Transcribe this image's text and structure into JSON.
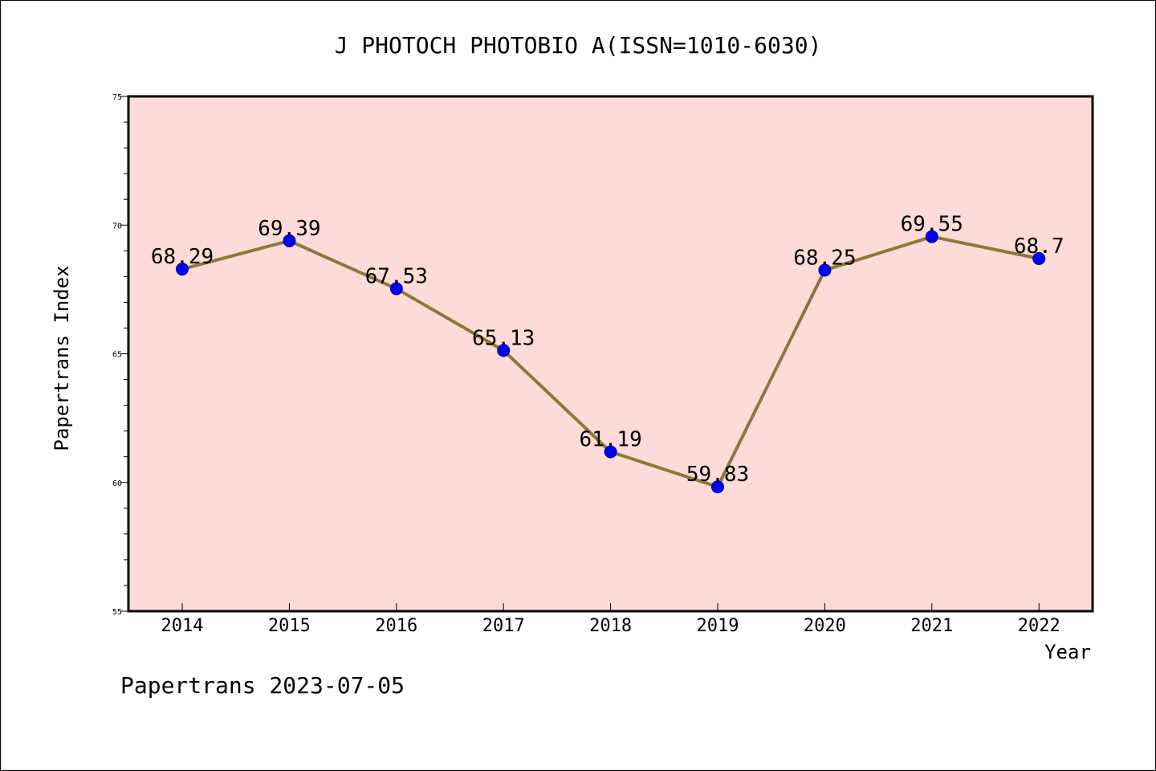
{
  "chart_data": {
    "type": "line",
    "title": "J PHOTOCH PHOTOBIO A(ISSN=1010-6030)",
    "xlabel": "Year",
    "ylabel": "Papertrans Index",
    "categories": [
      "2014",
      "2015",
      "2016",
      "2017",
      "2018",
      "2019",
      "2020",
      "2021",
      "2022"
    ],
    "series": [
      {
        "values": [
          68.29,
          69.39,
          67.53,
          65.13,
          61.19,
          59.83,
          68.25,
          69.55,
          68.7
        ],
        "labels": [
          "68.29",
          "69.39",
          "67.53",
          "65.13",
          "61.19",
          "59.83",
          "68.25",
          "69.55",
          "68.7"
        ]
      }
    ],
    "ylim": [
      55,
      75
    ],
    "yticks": [
      "55",
      "60",
      "65",
      "70",
      "75"
    ],
    "grid": false,
    "colors": {
      "plot_background": "#fddbd8",
      "line": "#8b7a3a",
      "marker": "#0000ff"
    }
  },
  "footer": {
    "text": "Papertrans 2023-07-05"
  }
}
